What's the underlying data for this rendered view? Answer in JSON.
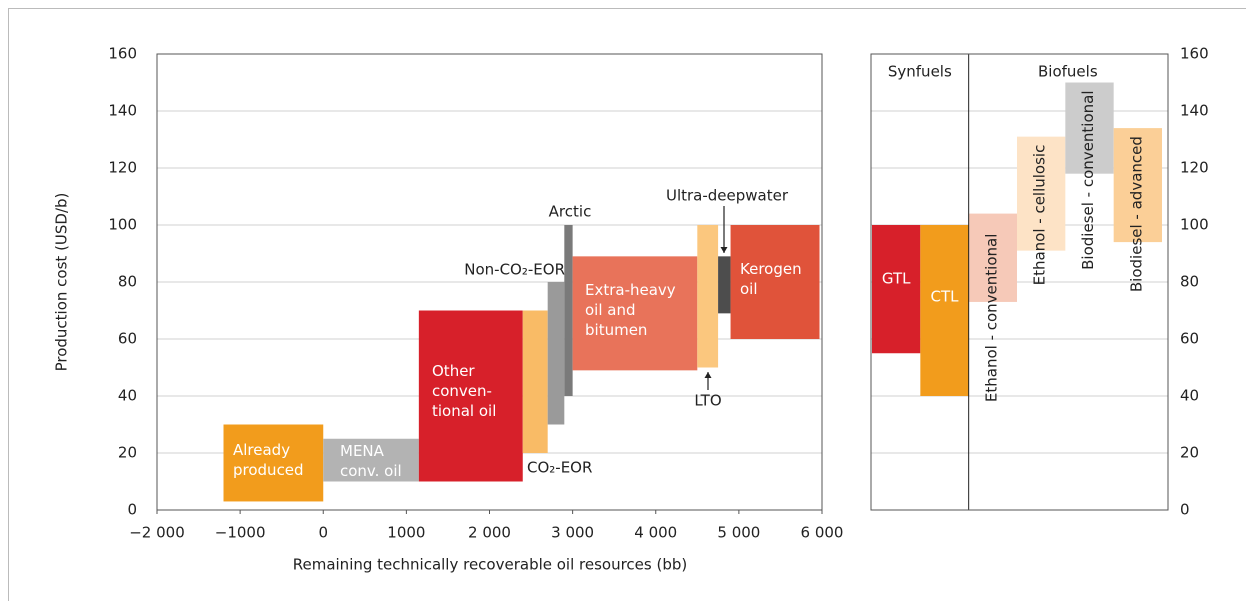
{
  "chart_data": [
    {
      "type": "range",
      "ylabel": "Production cost (USD/b)",
      "xlabel": "Remaining technically recoverable oil resources (bb)",
      "xlim": [
        -2000,
        6000
      ],
      "xticks": [
        {
          "value": -2000,
          "label": "−2 000"
        },
        {
          "value": -1000,
          "label": "−1000"
        },
        0,
        1000,
        {
          "value": 2000,
          "label": "2 000"
        },
        {
          "value": 3000,
          "label": "3 000"
        },
        {
          "value": 4000,
          "label": "4 000"
        },
        {
          "value": 5000,
          "label": "5 000"
        },
        {
          "value": 6000,
          "label": "6 000"
        }
      ],
      "ylim": [
        0,
        160
      ],
      "yticks": [
        0,
        20,
        40,
        60,
        80,
        100,
        120,
        140,
        160
      ],
      "grid": true,
      "segments": [
        {
          "name": "Already\nproduced",
          "x": [
            -1200,
            0
          ],
          "y": [
            3,
            30
          ],
          "color": "#f29c1c"
        },
        {
          "name": "MENA\nconv. oil",
          "x": [
            0,
            1150
          ],
          "y": [
            10,
            25
          ],
          "color": "#b3b3b3"
        },
        {
          "name": "Other\nconven-\ntional oil",
          "x": [
            1150,
            2400
          ],
          "y": [
            10,
            70
          ],
          "color": "#d7202a"
        },
        {
          "name": "CO₂-EOR",
          "x": [
            2400,
            2700
          ],
          "y": [
            20,
            70
          ],
          "color": "#f9bb66"
        },
        {
          "name": "Non-CO₂-EOR",
          "x": [
            2700,
            2900
          ],
          "y": [
            30,
            80
          ],
          "color": "#9a9a9a"
        },
        {
          "name": "Arctic",
          "x": [
            2900,
            3000
          ],
          "y": [
            40,
            100
          ],
          "color": "#7a7a7a"
        },
        {
          "name": "Extra-heavy\noil and\nbitumen",
          "x": [
            3000,
            4500
          ],
          "y": [
            49,
            89
          ],
          "color": "#e8735a"
        },
        {
          "name": "LTO",
          "x": [
            4500,
            4750
          ],
          "y": [
            50,
            100
          ],
          "color": "#fbc77e"
        },
        {
          "name": "Ultra-deepwater",
          "x": [
            4750,
            4900
          ],
          "y": [
            69,
            89
          ],
          "color": "#4d4d4d"
        },
        {
          "name": "Kerogen\noil",
          "x": [
            4900,
            5970
          ],
          "y": [
            60,
            100
          ],
          "color": "#e0533a"
        }
      ]
    },
    {
      "type": "floating",
      "ylim": [
        0,
        160
      ],
      "yticks": [
        0,
        20,
        40,
        60,
        80,
        100,
        120,
        140,
        160
      ],
      "grid": true,
      "groups": [
        {
          "name": "Synfuels",
          "items": [
            {
              "name": "GTL",
              "y": [
                55,
                100
              ],
              "color": "#d7202a"
            },
            {
              "name": "CTL",
              "y": [
                40,
                100
              ],
              "color": "#f29c1c"
            }
          ]
        },
        {
          "name": "Biofuels",
          "items": [
            {
              "name": "Ethanol - conventional",
              "y": [
                73,
                104
              ],
              "color": "#f6c9b8"
            },
            {
              "name": "Ethanol - cellulosic",
              "y": [
                91,
                131
              ],
              "color": "#fde3c6"
            },
            {
              "name": "Biodiesel - conventional",
              "y": [
                118,
                150
              ],
              "color": "#cccccc"
            },
            {
              "name": "Biodiesel - advanced",
              "y": [
                94,
                134
              ],
              "color": "#fbcf97"
            }
          ]
        }
      ]
    }
  ]
}
